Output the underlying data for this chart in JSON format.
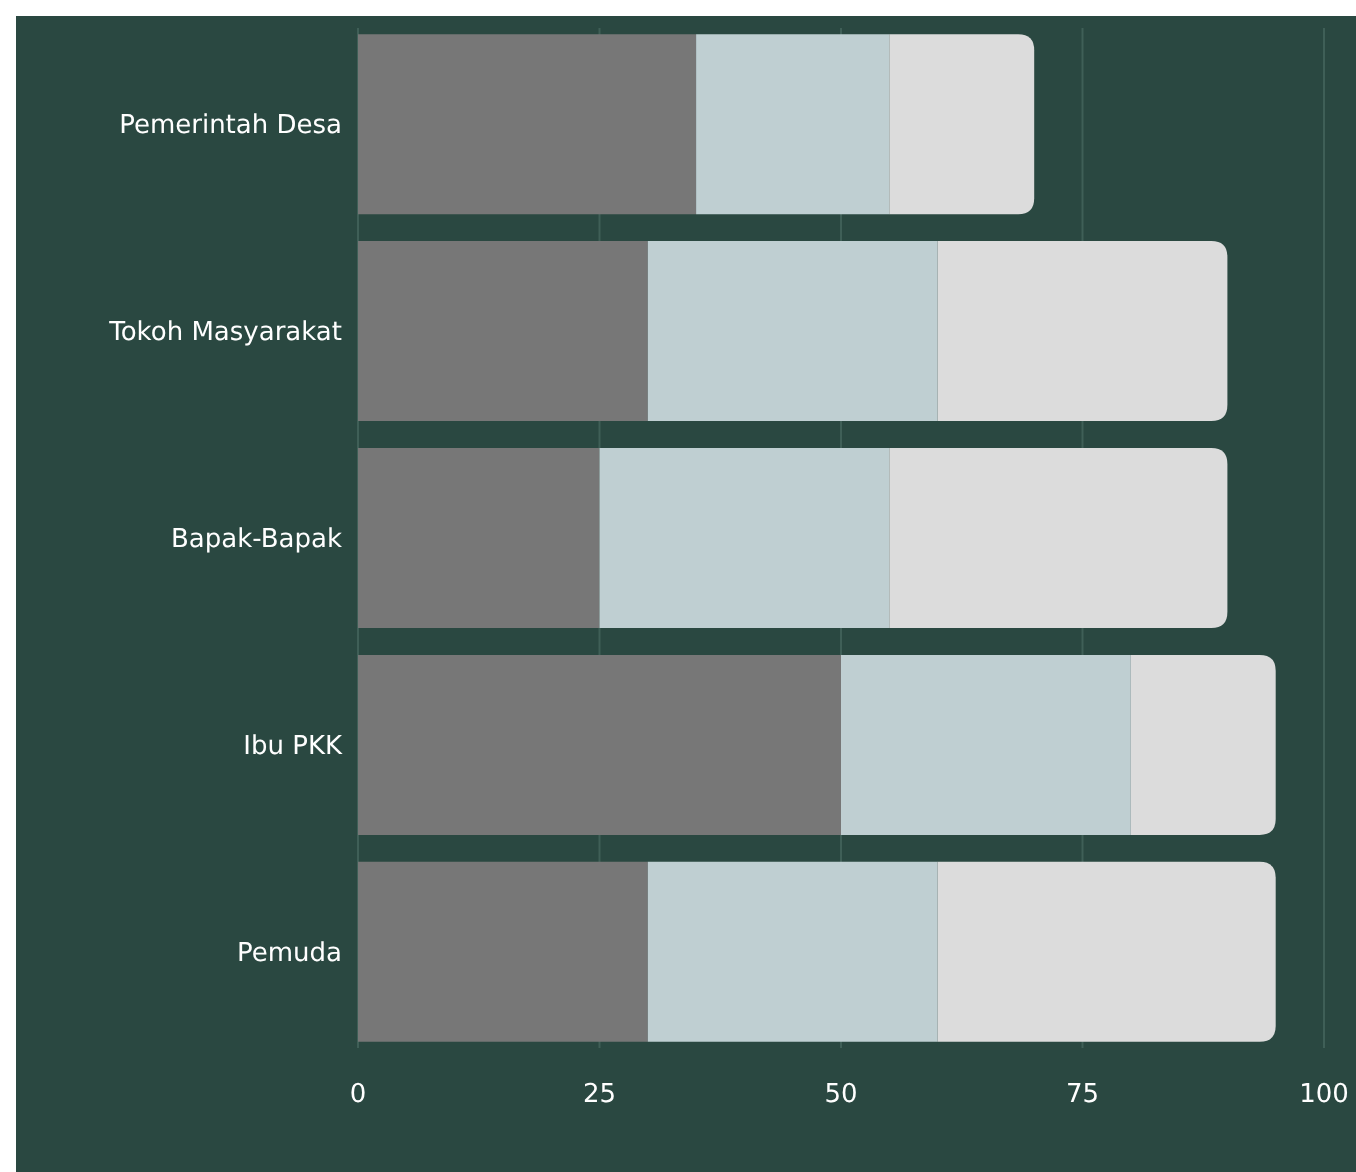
{
  "chart_data": {
    "type": "bar",
    "orientation": "horizontal",
    "stacked": true,
    "categories": [
      "Pemerintah Desa",
      "Tokoh Masyarakat",
      "Bapak-Bapak",
      "Ibu PKK",
      "Pemuda"
    ],
    "series": [
      {
        "color": "#777777",
        "values": [
          35,
          30,
          25,
          50,
          30
        ]
      },
      {
        "color": "#bfcfd2",
        "values": [
          20,
          30,
          30,
          30,
          30
        ]
      },
      {
        "color": "#dcdcdc",
        "values": [
          15,
          30,
          35,
          15,
          35
        ]
      }
    ],
    "xlim": [
      0,
      100
    ],
    "xticks": [
      0,
      25,
      50,
      75,
      100
    ],
    "grid": "x"
  }
}
